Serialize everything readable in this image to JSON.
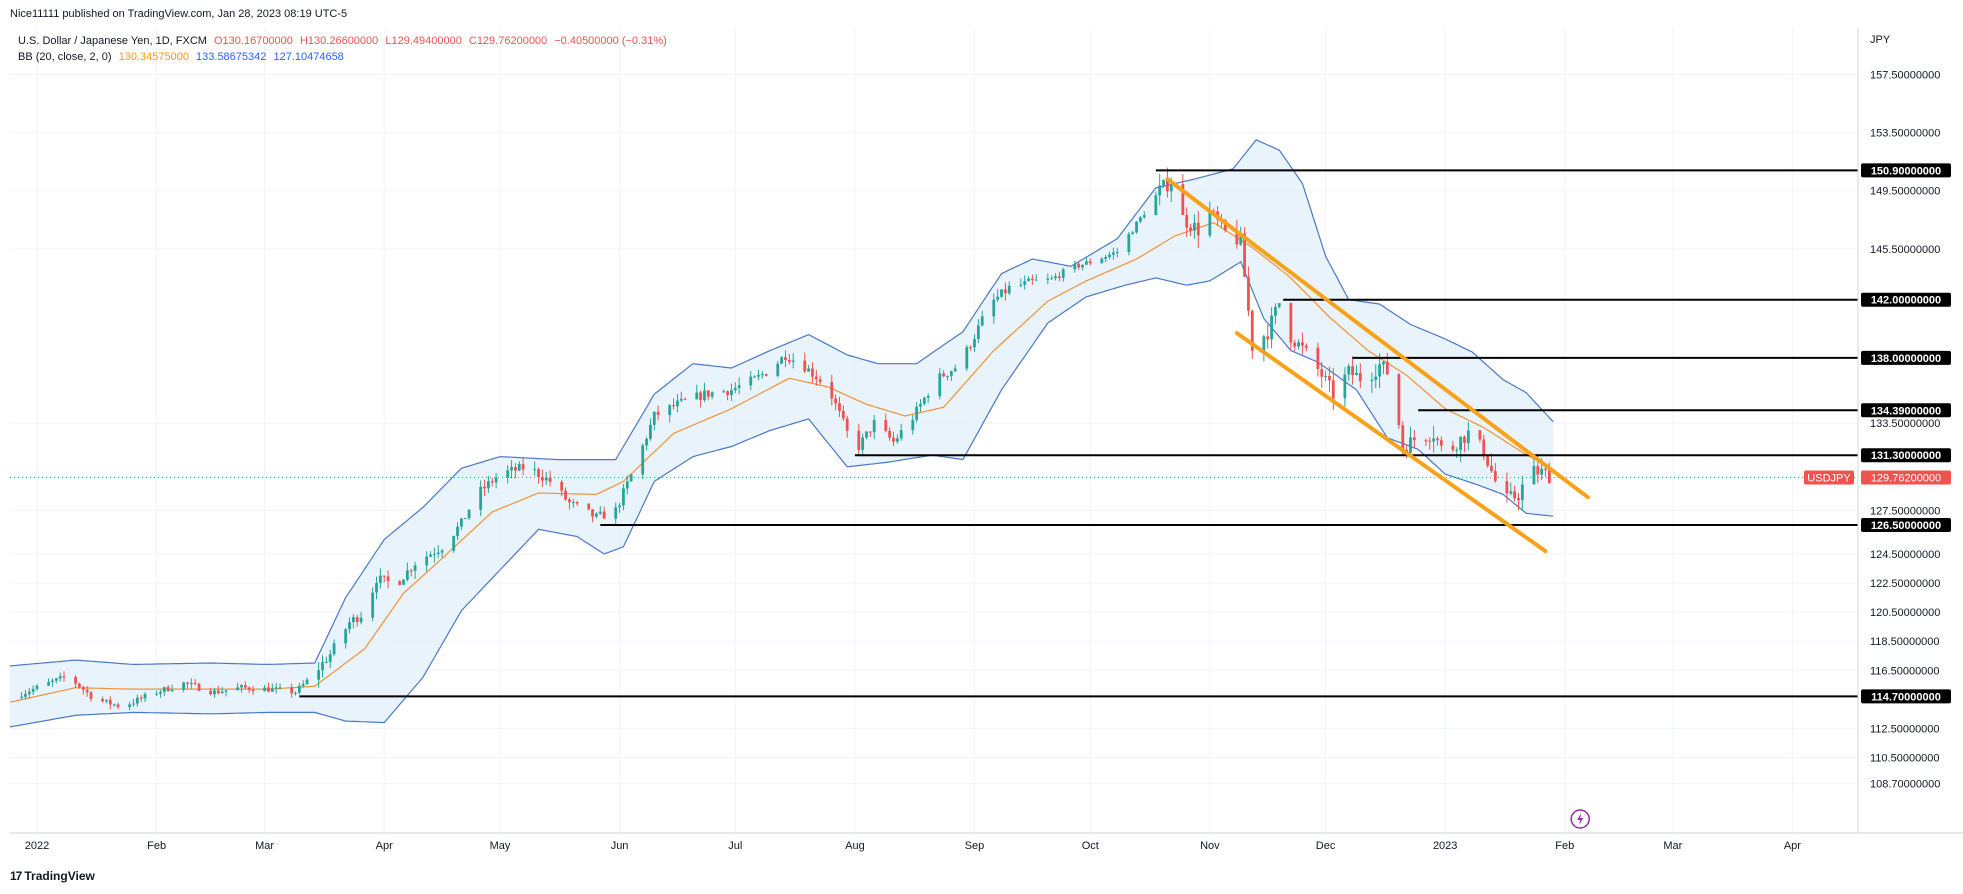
{
  "header": {
    "publisher": "Nice11111 published on TradingView.com, Jan 28, 2023 08:19 UTC-5",
    "symbol_line": "U.S. Dollar / Japanese Yen, 1D, FXCM",
    "open": "O130.16700000",
    "high": "H130.26600000",
    "low": "L129.49400000",
    "close": "C129.76200000",
    "change": "−0.40500000 (−0.31%)",
    "bb_label": "BB (20, close, 2, 0)",
    "bb_basis": "130.34575000",
    "bb_upper": "133.58675342",
    "bb_lower": "127.10474658"
  },
  "currency": "JPY",
  "price_label": {
    "symbol": "USDJPY",
    "value": "129.76200000"
  },
  "watermark": "TradingView",
  "colors": {
    "up": "#26a69a",
    "down": "#ef5350",
    "bb_band": "#4a78c8",
    "bb_basis": "#f0923a",
    "bb_fill": "#e3f0fa",
    "channel": "#f7a21b",
    "level": "#000000",
    "grid": "#f0f3fa"
  },
  "chart_data": {
    "type": "candlestick",
    "symbol": "USDJPY",
    "timeframe": "1D",
    "x_ticks": [
      "2022",
      "Feb",
      "Mar",
      "Apr",
      "May",
      "Jun",
      "Jul",
      "Aug",
      "Sep",
      "Oct",
      "Nov",
      "Dec",
      "2023",
      "Feb",
      "Mar",
      "Apr"
    ],
    "x_tick_days": [
      0,
      31,
      59,
      90,
      120,
      151,
      181,
      212,
      243,
      273,
      304,
      334,
      365,
      396,
      424,
      455
    ],
    "x_range_days": [
      -7,
      472
    ],
    "y_ticks": [
      "157.50000000",
      "153.50000000",
      "149.50000000",
      "145.50000000",
      "133.50000000",
      "127.50000000",
      "124.50000000",
      "122.50000000",
      "120.50000000",
      "118.50000000",
      "116.50000000",
      "112.50000000",
      "110.50000000",
      "108.70000000"
    ],
    "y_range": [
      105.3,
      160.7
    ],
    "closes": [
      {
        "d": -7,
        "c": 114.6
      },
      {
        "d": 0,
        "c": 115.3
      },
      {
        "d": 8,
        "c": 116.1
      },
      {
        "d": 15,
        "c": 114.5
      },
      {
        "d": 22,
        "c": 114.0
      },
      {
        "d": 31,
        "c": 115.0
      },
      {
        "d": 38,
        "c": 115.6
      },
      {
        "d": 46,
        "c": 115.0
      },
      {
        "d": 53,
        "c": 115.3
      },
      {
        "d": 60,
        "c": 115.2
      },
      {
        "d": 67,
        "c": 115.0
      },
      {
        "d": 71,
        "c": 116.0
      },
      {
        "d": 76,
        "c": 117.6
      },
      {
        "d": 81,
        "c": 119.8
      },
      {
        "d": 85,
        "c": 120.5
      },
      {
        "d": 88,
        "c": 122.8
      },
      {
        "d": 93,
        "c": 122.4
      },
      {
        "d": 98,
        "c": 123.9
      },
      {
        "d": 105,
        "c": 125.0
      },
      {
        "d": 110,
        "c": 126.6
      },
      {
        "d": 114,
        "c": 128.6
      },
      {
        "d": 120,
        "c": 130.0
      },
      {
        "d": 127,
        "c": 130.5
      },
      {
        "d": 133,
        "c": 129.5
      },
      {
        "d": 138,
        "c": 128.0
      },
      {
        "d": 145,
        "c": 127.0
      },
      {
        "d": 150,
        "c": 127.5
      },
      {
        "d": 155,
        "c": 130.5
      },
      {
        "d": 160,
        "c": 134.0
      },
      {
        "d": 166,
        "c": 134.8
      },
      {
        "d": 173,
        "c": 135.5
      },
      {
        "d": 180,
        "c": 135.8
      },
      {
        "d": 186,
        "c": 136.5
      },
      {
        "d": 190,
        "c": 137.2
      },
      {
        "d": 194,
        "c": 138.2
      },
      {
        "d": 199,
        "c": 137.4
      },
      {
        "d": 205,
        "c": 136.0
      },
      {
        "d": 209,
        "c": 133.5
      },
      {
        "d": 212,
        "c": 131.5
      },
      {
        "d": 217,
        "c": 133.5
      },
      {
        "d": 222,
        "c": 132.2
      },
      {
        "d": 227,
        "c": 133.9
      },
      {
        "d": 233,
        "c": 136.5
      },
      {
        "d": 239,
        "c": 137.5
      },
      {
        "d": 243,
        "c": 139.5
      },
      {
        "d": 247,
        "c": 141.7
      },
      {
        "d": 252,
        "c": 142.8
      },
      {
        "d": 258,
        "c": 143.2
      },
      {
        "d": 263,
        "c": 143.4
      },
      {
        "d": 268,
        "c": 144.2
      },
      {
        "d": 273,
        "c": 144.6
      },
      {
        "d": 280,
        "c": 145.3
      },
      {
        "d": 286,
        "c": 147.6
      },
      {
        "d": 291,
        "c": 149.5
      },
      {
        "d": 294,
        "c": 150.2
      },
      {
        "d": 297,
        "c": 147.6
      },
      {
        "d": 301,
        "c": 146.8
      },
      {
        "d": 304,
        "c": 148.0
      },
      {
        "d": 308,
        "c": 146.6
      },
      {
        "d": 312,
        "c": 146.0
      },
      {
        "d": 315,
        "c": 138.8
      },
      {
        "d": 319,
        "c": 139.8
      },
      {
        "d": 322,
        "c": 141.8
      },
      {
        "d": 325,
        "c": 139.5
      },
      {
        "d": 329,
        "c": 138.3
      },
      {
        "d": 333,
        "c": 136.8
      },
      {
        "d": 336,
        "c": 135.5
      },
      {
        "d": 340,
        "c": 137.0
      },
      {
        "d": 344,
        "c": 136.5
      },
      {
        "d": 348,
        "c": 137.5
      },
      {
        "d": 351,
        "c": 136.8
      },
      {
        "d": 354,
        "c": 131.8
      },
      {
        "d": 358,
        "c": 132.6
      },
      {
        "d": 362,
        "c": 132.8
      },
      {
        "d": 365,
        "c": 131.2
      },
      {
        "d": 368,
        "c": 132.2
      },
      {
        "d": 371,
        "c": 132.8
      },
      {
        "d": 375,
        "c": 131.6
      },
      {
        "d": 378,
        "c": 129.5
      },
      {
        "d": 381,
        "c": 128.2
      },
      {
        "d": 384,
        "c": 128.6
      },
      {
        "d": 387,
        "c": 130.2
      },
      {
        "d": 390,
        "c": 130.1
      },
      {
        "d": 393,
        "c": 129.8
      }
    ],
    "bb_upper": [
      {
        "d": -7,
        "c": 116.8
      },
      {
        "d": 10,
        "c": 117.2
      },
      {
        "d": 25,
        "c": 116.9
      },
      {
        "d": 45,
        "c": 117.0
      },
      {
        "d": 60,
        "c": 116.9
      },
      {
        "d": 72,
        "c": 117.0
      },
      {
        "d": 80,
        "c": 121.5
      },
      {
        "d": 90,
        "c": 125.5
      },
      {
        "d": 100,
        "c": 127.7
      },
      {
        "d": 110,
        "c": 130.4
      },
      {
        "d": 120,
        "c": 131.2
      },
      {
        "d": 135,
        "c": 131.0
      },
      {
        "d": 150,
        "c": 131.0
      },
      {
        "d": 160,
        "c": 135.5
      },
      {
        "d": 170,
        "c": 137.6
      },
      {
        "d": 180,
        "c": 137.3
      },
      {
        "d": 190,
        "c": 138.5
      },
      {
        "d": 200,
        "c": 139.6
      },
      {
        "d": 210,
        "c": 138.2
      },
      {
        "d": 218,
        "c": 137.6
      },
      {
        "d": 228,
        "c": 137.6
      },
      {
        "d": 240,
        "c": 139.8
      },
      {
        "d": 250,
        "c": 143.8
      },
      {
        "d": 258,
        "c": 144.8
      },
      {
        "d": 268,
        "c": 144.3
      },
      {
        "d": 280,
        "c": 146.2
      },
      {
        "d": 290,
        "c": 149.7
      },
      {
        "d": 300,
        "c": 150.3
      },
      {
        "d": 310,
        "c": 151.0
      },
      {
        "d": 316,
        "c": 153.0
      },
      {
        "d": 322,
        "c": 152.3
      },
      {
        "d": 328,
        "c": 150.0
      },
      {
        "d": 334,
        "c": 145.0
      },
      {
        "d": 340,
        "c": 142.0
      },
      {
        "d": 348,
        "c": 141.7
      },
      {
        "d": 356,
        "c": 140.3
      },
      {
        "d": 365,
        "c": 139.3
      },
      {
        "d": 372,
        "c": 138.4
      },
      {
        "d": 380,
        "c": 136.5
      },
      {
        "d": 386,
        "c": 135.6
      },
      {
        "d": 393,
        "c": 133.6
      }
    ],
    "bb_basis": [
      {
        "d": -7,
        "c": 114.3
      },
      {
        "d": 10,
        "c": 115.3
      },
      {
        "d": 25,
        "c": 115.2
      },
      {
        "d": 45,
        "c": 115.2
      },
      {
        "d": 60,
        "c": 115.2
      },
      {
        "d": 72,
        "c": 115.4
      },
      {
        "d": 85,
        "c": 118.0
      },
      {
        "d": 95,
        "c": 121.8
      },
      {
        "d": 105,
        "c": 124.2
      },
      {
        "d": 118,
        "c": 127.4
      },
      {
        "d": 130,
        "c": 128.7
      },
      {
        "d": 145,
        "c": 128.6
      },
      {
        "d": 152,
        "c": 129.5
      },
      {
        "d": 165,
        "c": 132.8
      },
      {
        "d": 180,
        "c": 134.5
      },
      {
        "d": 195,
        "c": 136.6
      },
      {
        "d": 205,
        "c": 136.0
      },
      {
        "d": 215,
        "c": 134.8
      },
      {
        "d": 225,
        "c": 134.0
      },
      {
        "d": 235,
        "c": 134.6
      },
      {
        "d": 248,
        "c": 138.5
      },
      {
        "d": 262,
        "c": 141.9
      },
      {
        "d": 272,
        "c": 143.3
      },
      {
        "d": 285,
        "c": 144.8
      },
      {
        "d": 295,
        "c": 146.4
      },
      {
        "d": 305,
        "c": 147.3
      },
      {
        "d": 315,
        "c": 145.6
      },
      {
        "d": 325,
        "c": 143.5
      },
      {
        "d": 335,
        "c": 140.8
      },
      {
        "d": 345,
        "c": 138.5
      },
      {
        "d": 355,
        "c": 136.8
      },
      {
        "d": 365,
        "c": 134.5
      },
      {
        "d": 375,
        "c": 133.2
      },
      {
        "d": 385,
        "c": 131.5
      },
      {
        "d": 393,
        "c": 130.3
      }
    ],
    "bb_lower": [
      {
        "d": -7,
        "c": 112.6
      },
      {
        "d": 10,
        "c": 113.4
      },
      {
        "d": 25,
        "c": 113.6
      },
      {
        "d": 45,
        "c": 113.5
      },
      {
        "d": 60,
        "c": 113.6
      },
      {
        "d": 72,
        "c": 113.6
      },
      {
        "d": 80,
        "c": 113.0
      },
      {
        "d": 90,
        "c": 112.9
      },
      {
        "d": 100,
        "c": 116.0
      },
      {
        "d": 110,
        "c": 120.6
      },
      {
        "d": 120,
        "c": 123.4
      },
      {
        "d": 130,
        "c": 126.2
      },
      {
        "d": 140,
        "c": 125.7
      },
      {
        "d": 147,
        "c": 124.5
      },
      {
        "d": 152,
        "c": 125.0
      },
      {
        "d": 160,
        "c": 129.5
      },
      {
        "d": 170,
        "c": 131.2
      },
      {
        "d": 180,
        "c": 131.9
      },
      {
        "d": 190,
        "c": 133.0
      },
      {
        "d": 200,
        "c": 133.8
      },
      {
        "d": 210,
        "c": 130.5
      },
      {
        "d": 220,
        "c": 130.8
      },
      {
        "d": 232,
        "c": 131.3
      },
      {
        "d": 240,
        "c": 131.0
      },
      {
        "d": 250,
        "c": 135.8
      },
      {
        "d": 262,
        "c": 140.4
      },
      {
        "d": 272,
        "c": 142.2
      },
      {
        "d": 282,
        "c": 143.0
      },
      {
        "d": 290,
        "c": 143.5
      },
      {
        "d": 298,
        "c": 143.0
      },
      {
        "d": 304,
        "c": 143.3
      },
      {
        "d": 312,
        "c": 144.6
      },
      {
        "d": 318,
        "c": 140.7
      },
      {
        "d": 325,
        "c": 138.5
      },
      {
        "d": 332,
        "c": 137.7
      },
      {
        "d": 342,
        "c": 135.8
      },
      {
        "d": 350,
        "c": 132.5
      },
      {
        "d": 358,
        "c": 131.7
      },
      {
        "d": 365,
        "c": 130.0
      },
      {
        "d": 373,
        "c": 129.3
      },
      {
        "d": 380,
        "c": 128.6
      },
      {
        "d": 386,
        "c": 127.3
      },
      {
        "d": 393,
        "c": 127.1
      }
    ],
    "levels": [
      {
        "price": 150.9,
        "label": "150.90000000",
        "from_day": 290
      },
      {
        "price": 142.0,
        "label": "142.00000000",
        "from_day": 323
      },
      {
        "price": 138.0,
        "label": "138.00000000",
        "from_day": 341
      },
      {
        "price": 134.39,
        "label": "134.39000000",
        "from_day": 358
      },
      {
        "price": 131.3,
        "label": "131.30000000",
        "from_day": 212
      },
      {
        "price": 126.5,
        "label": "126.50000000",
        "from_day": 146
      },
      {
        "price": 114.7,
        "label": "114.70000000",
        "from_day": 68
      }
    ],
    "channel_lines": [
      {
        "from": {
          "d": 293,
          "c": 150.3
        },
        "to": {
          "d": 402,
          "c": 128.4
        }
      },
      {
        "from": {
          "d": 311,
          "c": 139.7
        },
        "to": {
          "d": 391,
          "c": 124.7
        }
      }
    ]
  }
}
